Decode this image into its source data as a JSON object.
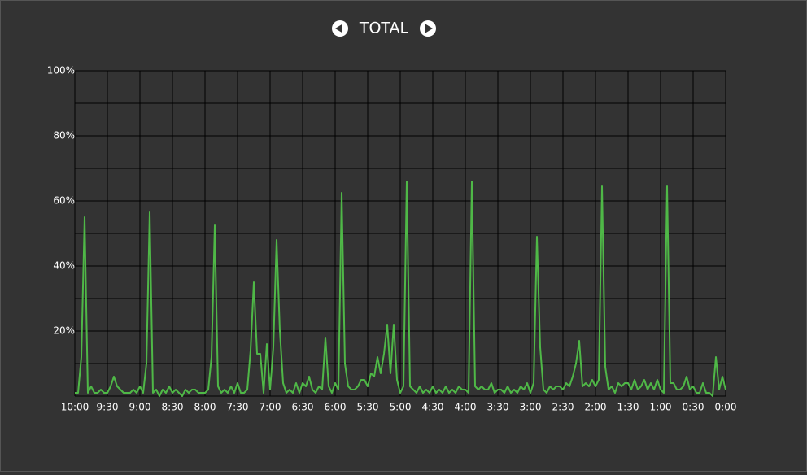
{
  "chart_data": {
    "type": "line",
    "title": "TOTAL",
    "categories": [
      "10:00",
      null,
      null,
      null,
      null,
      null,
      null,
      null,
      null,
      null,
      "9:30",
      null,
      null,
      null,
      null,
      null,
      null,
      null,
      null,
      null,
      "9:00",
      null,
      null,
      null,
      null,
      null,
      null,
      null,
      null,
      null,
      "8:30",
      null,
      null,
      null,
      null,
      null,
      null,
      null,
      null,
      null,
      "8:00",
      null,
      null,
      null,
      null,
      null,
      null,
      null,
      null,
      null,
      "7:30",
      null,
      null,
      null,
      null,
      null,
      null,
      null,
      null,
      null,
      "7:00",
      null,
      null,
      null,
      null,
      null,
      null,
      null,
      null,
      null,
      "6:30",
      null,
      null,
      null,
      null,
      null,
      null,
      null,
      null,
      null,
      "6:00",
      null,
      null,
      null,
      null,
      null,
      null,
      null,
      null,
      null,
      "5:30",
      null,
      null,
      null,
      null,
      null,
      null,
      null,
      null,
      null,
      "5:00",
      null,
      null,
      null,
      null,
      null,
      null,
      null,
      null,
      null,
      "4:30",
      null,
      null,
      null,
      null,
      null,
      null,
      null,
      null,
      null,
      "4:00",
      null,
      null,
      null,
      null,
      null,
      null,
      null,
      null,
      null,
      "3:30",
      null,
      null,
      null,
      null,
      null,
      null,
      null,
      null,
      null,
      "3:00",
      null,
      null,
      null,
      null,
      null,
      null,
      null,
      null,
      null,
      "2:30",
      null,
      null,
      null,
      null,
      null,
      null,
      null,
      null,
      null,
      "2:00",
      null,
      null,
      null,
      null,
      null,
      null,
      null,
      null,
      null,
      "1:30",
      null,
      null,
      null,
      null,
      null,
      null,
      null,
      null,
      null,
      "1:00",
      null,
      null,
      null,
      null,
      null,
      null,
      null,
      null,
      null,
      "0:30",
      null,
      null,
      null,
      null,
      null,
      null,
      null,
      null,
      null,
      "0:00"
    ],
    "values": [
      1,
      1,
      12,
      55,
      1,
      3,
      1,
      1,
      2,
      1,
      1,
      3,
      6,
      3,
      2,
      1,
      1,
      1,
      2,
      1,
      3,
      1,
      10,
      56.5,
      1,
      2,
      0,
      2,
      1,
      3,
      1,
      2,
      1,
      0,
      2,
      1,
      2,
      2,
      1,
      1,
      1,
      2,
      12,
      52.5,
      3,
      1,
      2,
      1,
      3,
      1,
      4,
      1,
      1,
      2,
      14,
      35,
      13,
      13,
      1,
      16,
      2,
      15,
      48,
      20,
      4,
      1,
      2,
      1,
      4,
      1,
      4,
      3,
      6,
      2,
      1,
      3,
      2,
      18,
      3,
      1,
      4,
      2,
      62.5,
      10,
      3,
      2,
      2,
      3,
      5,
      5,
      3,
      7,
      6,
      12,
      7,
      13,
      22,
      7,
      22,
      5,
      1,
      3,
      66,
      3,
      2,
      1,
      3,
      1,
      2,
      1,
      3,
      1,
      2,
      1,
      3,
      1,
      2,
      1,
      3,
      2,
      2,
      1,
      66,
      3,
      2,
      3,
      2,
      2,
      4,
      1,
      2,
      2,
      1,
      3,
      1,
      2,
      1,
      3,
      2,
      4,
      1,
      4,
      49,
      15,
      2,
      1,
      3,
      2,
      3,
      3,
      2,
      4,
      3,
      6,
      10,
      17,
      3,
      4,
      3,
      5,
      3,
      5,
      64.5,
      9,
      2,
      3,
      1,
      4,
      3,
      4,
      4,
      2,
      5,
      2,
      3,
      5,
      2,
      4,
      2,
      5,
      2,
      1,
      64.5,
      4,
      4,
      2,
      2,
      3,
      6,
      2,
      3,
      1,
      1,
      4,
      1,
      1,
      0,
      12,
      2,
      6,
      2
    ],
    "color": "#4fb847",
    "ylim": [
      0,
      100
    ],
    "yticks": [
      {
        "value": 20,
        "label": "20%"
      },
      {
        "value": 40,
        "label": "40%"
      },
      {
        "value": 60,
        "label": "60%"
      },
      {
        "value": 80,
        "label": "80%"
      },
      {
        "value": 100,
        "label": "100%"
      }
    ],
    "minor_yticks": [
      0,
      10,
      30,
      50,
      70,
      90
    ],
    "grid": true
  }
}
